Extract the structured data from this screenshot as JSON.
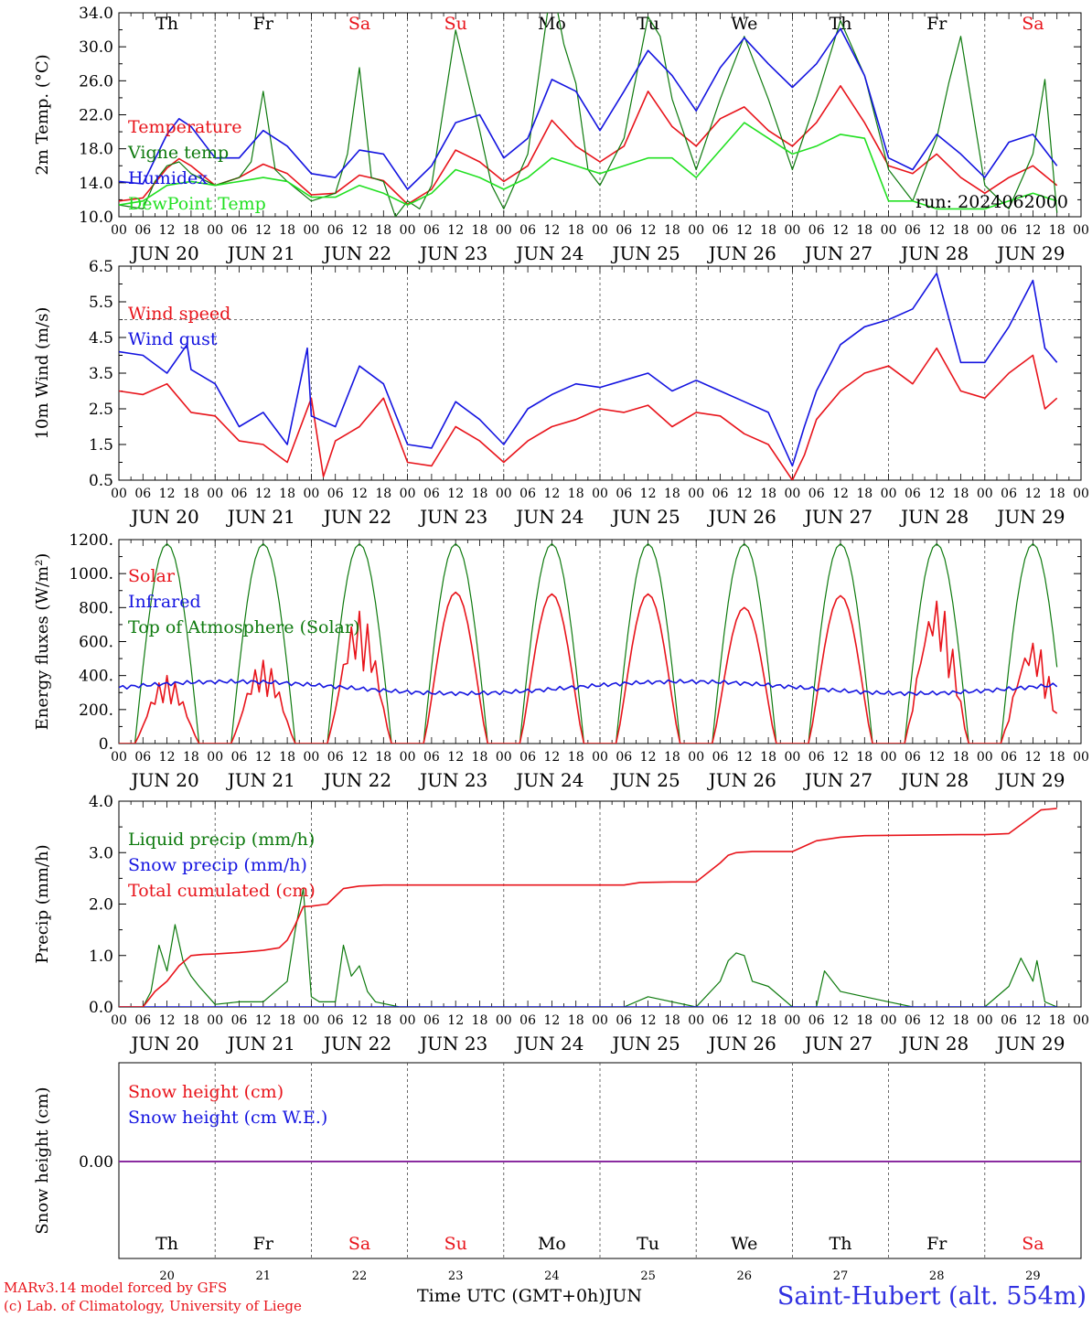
{
  "header": {
    "run": "run: 2024062000"
  },
  "days": [
    "Th",
    "Fr",
    "Sa",
    "Su",
    "Mo",
    "Tu",
    "We",
    "Th",
    "Fr",
    "Sa"
  ],
  "weekend_days": [
    "Sa",
    "Su"
  ],
  "hour_ticks": [
    "00",
    "06",
    "12",
    "18"
  ],
  "date_labels": [
    "JUN 20",
    "JUN 21",
    "JUN 22",
    "JUN 23",
    "JUN 24",
    "JUN 25",
    "JUN 26",
    "JUN 27",
    "JUN 28",
    "JUN 29"
  ],
  "bottom_day_numbers": [
    "20",
    "21",
    "22",
    "23",
    "24",
    "25",
    "26",
    "27",
    "28",
    "29"
  ],
  "footer": {
    "credit_line1": "MARv3.14 model forced by GFS",
    "credit_line2": "(c) Lab. of Climatology, University of Liege",
    "time_label": "Time UTC (GMT+0h)",
    "month": "JUN",
    "station": "Saint-Hubert (alt. 554m)"
  },
  "colors": {
    "red": "#e8141b",
    "green": "#0e7a0e",
    "blue": "#1414e0",
    "lightgreen": "#22e022",
    "purple": "#8a2ba0"
  },
  "chart_data": [
    {
      "type": "line",
      "ylabel": "2m Temp. (°C)",
      "ylim": [
        10,
        36
      ],
      "yticks": [
        "10.0",
        "14.0",
        "18.0",
        "22.0",
        "26.0",
        "30.0",
        "34.0"
      ],
      "x_unit": "hours since JUN 20 00 UTC",
      "series": [
        {
          "name": "Temperature",
          "color": "red",
          "x": [
            0,
            6,
            12,
            15,
            18,
            24,
            30,
            36,
            42,
            48,
            54,
            60,
            66,
            72,
            78,
            84,
            90,
            96,
            102,
            108,
            114,
            120,
            126,
            132,
            138,
            144,
            150,
            156,
            162,
            168,
            174,
            180,
            186,
            192,
            198,
            204,
            210,
            216,
            222,
            228,
            234
          ],
          "y": [
            12.0,
            12.4,
            16.2,
            17.4,
            16.5,
            14.0,
            15.0,
            16.7,
            15.5,
            12.8,
            13.0,
            15.3,
            14.6,
            11.6,
            13.5,
            18.5,
            17.0,
            14.5,
            16.5,
            22.3,
            19.0,
            17.0,
            19.0,
            26.0,
            21.5,
            19.0,
            22.5,
            24.0,
            21.0,
            19.0,
            22.0,
            26.7,
            22.0,
            16.5,
            15.5,
            18.0,
            15.0,
            13.0,
            15.0,
            16.5,
            14.0
          ]
        },
        {
          "name": "Vigne temp",
          "color": "green",
          "x": [
            0,
            6,
            9,
            12,
            15,
            18,
            24,
            30,
            33,
            36,
            39,
            42,
            48,
            54,
            57,
            60,
            63,
            66,
            69,
            72,
            75,
            78,
            84,
            90,
            93,
            96,
            102,
            108,
            111,
            114,
            117,
            120,
            126,
            132,
            135,
            138,
            144,
            150,
            156,
            162,
            168,
            174,
            180,
            186,
            192,
            198,
            204,
            207,
            210,
            216,
            222,
            228,
            231,
            234
          ],
          "y": [
            11.5,
            11.0,
            14.5,
            16.5,
            17.0,
            15.5,
            14.0,
            15.0,
            17.0,
            26.0,
            16.0,
            14.5,
            12.0,
            13.0,
            18.0,
            29.0,
            15.0,
            14.5,
            10.0,
            12.0,
            11.0,
            14.0,
            33.8,
            21.0,
            14.0,
            11.0,
            18.0,
            40.0,
            32.0,
            27.0,
            16.0,
            14.0,
            20.0,
            35.5,
            33.0,
            25.0,
            16.0,
            25.0,
            33.0,
            25.0,
            16.0,
            25.0,
            35.0,
            28.0,
            16.0,
            12.0,
            20.0,
            27.0,
            33.0,
            14.0,
            11.0,
            18.0,
            27.5,
            10.5
          ]
        },
        {
          "name": "Humidex",
          "color": "blue",
          "x": [
            0,
            6,
            12,
            15,
            18,
            24,
            30,
            36,
            42,
            48,
            54,
            60,
            66,
            72,
            78,
            84,
            90,
            96,
            102,
            108,
            114,
            120,
            126,
            132,
            138,
            144,
            150,
            156,
            162,
            168,
            174,
            180,
            186,
            192,
            198,
            204,
            210,
            216,
            222,
            228,
            234
          ],
          "y": [
            14.5,
            14.2,
            20.5,
            22.5,
            21.5,
            17.5,
            17.5,
            21.0,
            19.0,
            15.5,
            15.0,
            18.5,
            18.0,
            13.5,
            16.5,
            22.0,
            23.0,
            17.5,
            20.0,
            27.5,
            26.0,
            21.0,
            26.0,
            31.2,
            28.0,
            23.5,
            29.0,
            32.8,
            29.5,
            26.5,
            29.5,
            34.0,
            28.0,
            17.5,
            16.0,
            20.5,
            18.0,
            15.0,
            19.5,
            20.5,
            16.5
          ]
        },
        {
          "name": "DewPoint Temp",
          "color": "lightgreen",
          "x": [
            0,
            6,
            12,
            18,
            24,
            30,
            36,
            42,
            48,
            54,
            60,
            66,
            72,
            78,
            84,
            90,
            96,
            102,
            108,
            114,
            120,
            126,
            132,
            138,
            144,
            150,
            156,
            162,
            168,
            174,
            180,
            186,
            192,
            198,
            204,
            210,
            216,
            222,
            228,
            234
          ],
          "y": [
            11.5,
            12.0,
            14.0,
            14.5,
            14.0,
            14.5,
            15.0,
            14.5,
            12.5,
            12.5,
            14.0,
            13.0,
            11.5,
            13.0,
            16.0,
            15.0,
            13.5,
            15.0,
            17.5,
            16.5,
            15.5,
            16.5,
            17.5,
            17.5,
            15.0,
            18.5,
            22.0,
            20.0,
            18.0,
            19.0,
            20.5,
            20.0,
            12.0,
            12.0,
            11.0,
            11.0,
            11.0,
            12.0,
            13.0,
            12.0
          ]
        }
      ]
    },
    {
      "type": "line",
      "ylabel": "10m Wind (m/s)",
      "ylim": [
        0.5,
        6.5
      ],
      "yticks": [
        "0.5",
        "1.5",
        "2.5",
        "3.5",
        "4.5",
        "5.5",
        "6.5"
      ],
      "reference_line": 5.0,
      "series": [
        {
          "name": "Wind speed",
          "color": "red",
          "x": [
            0,
            6,
            12,
            18,
            24,
            30,
            36,
            42,
            48,
            51,
            54,
            60,
            66,
            72,
            78,
            84,
            90,
            96,
            102,
            108,
            114,
            120,
            126,
            132,
            138,
            144,
            150,
            156,
            162,
            168,
            171,
            174,
            180,
            186,
            192,
            198,
            204,
            210,
            216,
            222,
            228,
            231,
            234
          ],
          "y": [
            3.0,
            2.9,
            3.2,
            2.4,
            2.3,
            1.6,
            1.5,
            1.0,
            2.8,
            0.6,
            1.6,
            2.0,
            2.8,
            1.0,
            0.9,
            2.0,
            1.6,
            1.0,
            1.6,
            2.0,
            2.2,
            2.5,
            2.4,
            2.6,
            2.0,
            2.4,
            2.3,
            1.8,
            1.5,
            0.5,
            1.2,
            2.2,
            3.0,
            3.5,
            3.7,
            3.2,
            4.2,
            3.0,
            2.8,
            3.5,
            4.0,
            2.5,
            2.8
          ]
        },
        {
          "name": "Wind gust",
          "color": "blue",
          "x": [
            0,
            6,
            12,
            17,
            18,
            24,
            30,
            36,
            42,
            47,
            48,
            54,
            60,
            66,
            72,
            78,
            84,
            90,
            96,
            102,
            108,
            114,
            120,
            126,
            132,
            138,
            144,
            150,
            156,
            162,
            168,
            171,
            174,
            180,
            186,
            192,
            198,
            204,
            210,
            216,
            222,
            228,
            231,
            234
          ],
          "y": [
            4.1,
            4.0,
            3.5,
            4.3,
            3.6,
            3.2,
            2.0,
            2.4,
            1.5,
            4.2,
            2.3,
            2.0,
            3.7,
            3.2,
            1.5,
            1.4,
            2.7,
            2.2,
            1.5,
            2.5,
            2.9,
            3.2,
            3.1,
            3.3,
            3.5,
            3.0,
            3.3,
            3.0,
            2.7,
            2.4,
            0.9,
            2.0,
            3.0,
            4.3,
            4.8,
            5.0,
            5.3,
            6.3,
            3.8,
            3.8,
            4.8,
            6.1,
            4.2,
            3.8
          ]
        }
      ]
    },
    {
      "type": "line",
      "ylabel": "Energy fluxes (W/m²)",
      "ylim": [
        0,
        1200
      ],
      "yticks": [
        "0.",
        "200.",
        "400.",
        "600.",
        "800.",
        "1000.",
        "1200."
      ],
      "series": [
        {
          "name": "Solar",
          "color": "red",
          "peaks": [
            400,
            490,
            780,
            890,
            880,
            880,
            800,
            870,
            860,
            610
          ]
        },
        {
          "name": "Infrared",
          "color": "blue",
          "baseline": 330,
          "range": [
            290,
            390
          ]
        },
        {
          "name": "Top of Atmosphere (Solar)",
          "color": "green",
          "peak": 1175,
          "day_window_hours": [
            4,
            20
          ]
        }
      ]
    },
    {
      "type": "line",
      "ylabel": "Precip (mm/h)",
      "ylim": [
        0,
        4
      ],
      "yticks": [
        "0.0",
        "1.0",
        "2.0",
        "3.0",
        "4.0"
      ],
      "series": [
        {
          "name": "Liquid precip (mm/h)",
          "color": "green",
          "x": [
            0,
            6,
            8,
            10,
            12,
            14,
            16,
            18,
            20,
            24,
            30,
            36,
            42,
            44,
            46,
            48,
            50,
            54,
            56,
            58,
            60,
            62,
            64,
            70,
            120,
            126,
            132,
            144,
            150,
            152,
            154,
            156,
            158,
            162,
            168,
            174,
            176,
            180,
            186,
            192,
            198,
            210,
            216,
            222,
            225,
            228,
            229,
            231,
            234
          ],
          "y": [
            0,
            0,
            0.3,
            1.2,
            0.7,
            1.6,
            0.9,
            0.6,
            0.4,
            0.05,
            0.1,
            0.1,
            0.5,
            1.5,
            2.3,
            0.2,
            0.1,
            0.1,
            1.2,
            0.6,
            0.8,
            0.3,
            0.1,
            0,
            0,
            0,
            0.2,
            0,
            0.5,
            0.9,
            1.05,
            1.0,
            0.5,
            0.4,
            0,
            0,
            0.7,
            0.3,
            0.2,
            0.1,
            0,
            0,
            0,
            0.4,
            0.95,
            0.5,
            0.9,
            0.1,
            0
          ]
        },
        {
          "name": "Snow precip (mm/h)",
          "color": "blue",
          "x": [
            0,
            234
          ],
          "y": [
            0,
            0
          ]
        },
        {
          "name": "Total cumulated (cm)",
          "color": "red",
          "x": [
            0,
            6,
            9,
            12,
            15,
            18,
            21,
            24,
            30,
            36,
            40,
            42,
            44,
            46,
            48,
            52,
            56,
            60,
            66,
            72,
            90,
            126,
            130,
            138,
            144,
            150,
            152,
            154,
            158,
            162,
            168,
            174,
            180,
            186,
            210,
            216,
            222,
            226,
            230,
            234
          ],
          "y": [
            0,
            0,
            0.3,
            0.5,
            0.8,
            1.0,
            1.02,
            1.03,
            1.06,
            1.1,
            1.15,
            1.3,
            1.6,
            1.95,
            1.96,
            2.0,
            2.3,
            2.35,
            2.37,
            2.37,
            2.37,
            2.37,
            2.42,
            2.43,
            2.43,
            2.8,
            2.95,
            3.0,
            3.02,
            3.02,
            3.02,
            3.23,
            3.3,
            3.33,
            3.35,
            3.35,
            3.37,
            3.6,
            3.83,
            3.86
          ]
        }
      ]
    },
    {
      "type": "line",
      "ylabel": "Snow height (cm)",
      "yticks": [
        "0.00"
      ],
      "series": [
        {
          "name": "Snow height (cm)",
          "color": "red",
          "x": [
            0,
            234
          ],
          "y": [
            0,
            0
          ]
        },
        {
          "name": "Snow height (cm W.E.)",
          "color": "blue",
          "x": [
            0,
            234
          ],
          "y": [
            0,
            0
          ]
        }
      ]
    }
  ]
}
